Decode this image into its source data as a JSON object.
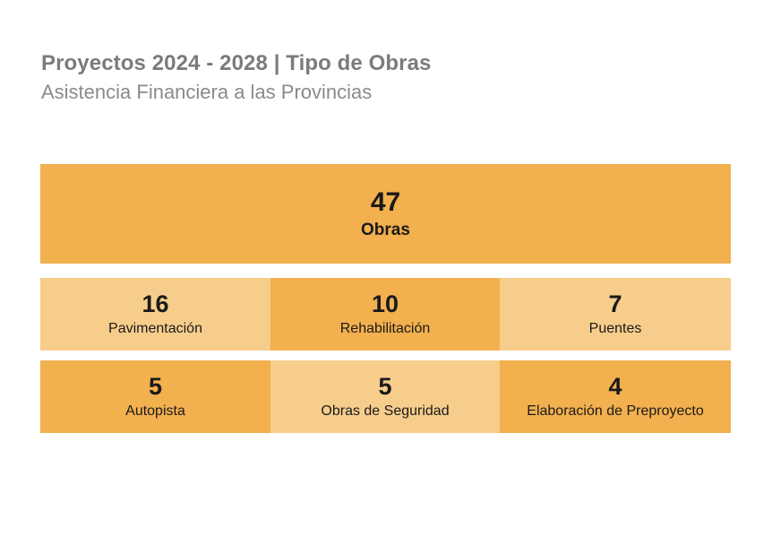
{
  "title": "Proyectos 2024 - 2028 | Tipo de Obras",
  "subtitle": "Asistencia Financiera a las Provincias",
  "colors": {
    "dark": "#f2b04e",
    "light": "#f7cd8c"
  },
  "chart_data": {
    "type": "table",
    "total": {
      "value": "47",
      "label": "Obras"
    },
    "categories": [
      "Pavimentación",
      "Rehabilitación",
      "Puentes",
      "Autopista",
      "Obras de Seguridad",
      "Elaboración de Preproyecto"
    ],
    "values": [
      "16",
      "10",
      "7",
      "5",
      "5",
      "4"
    ],
    "shades": [
      "light",
      "dark",
      "light",
      "dark",
      "light",
      "dark"
    ]
  }
}
